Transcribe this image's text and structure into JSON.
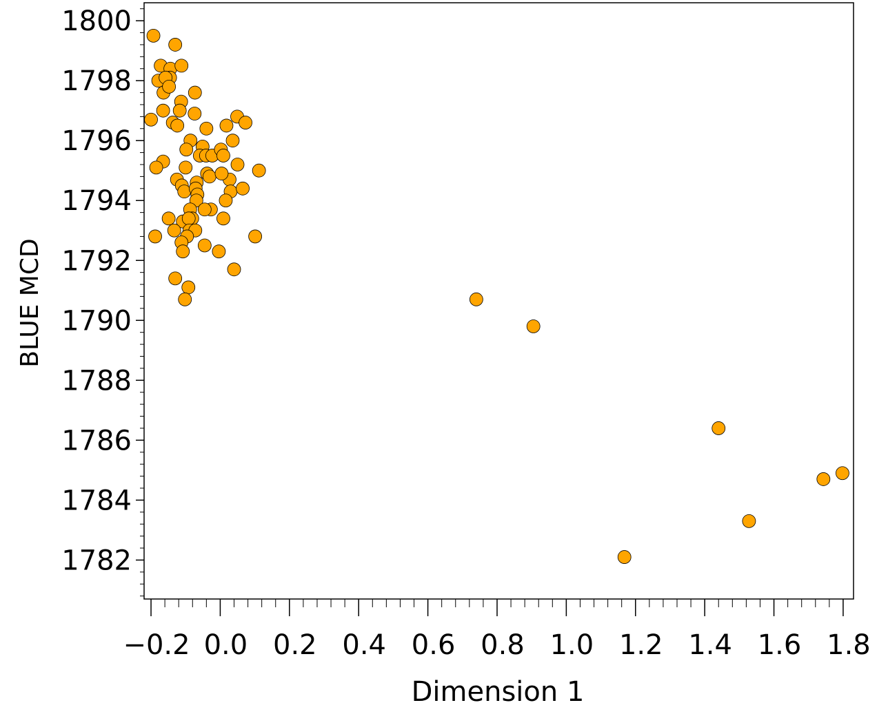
{
  "chart_data": {
    "type": "scatter",
    "title": "",
    "xlabel": "Dimension 1",
    "ylabel": "BLUE MCD",
    "xlim": [
      -0.22,
      1.83
    ],
    "ylim": [
      1780.7,
      1800.6
    ],
    "xticks": [
      "-0.2",
      "0.0",
      "0.2",
      "0.4",
      "0.6",
      "0.8",
      "1.0",
      "1.2",
      "1.4",
      "1.6",
      "1.8"
    ],
    "yticks": [
      "1782",
      "1784",
      "1786",
      "1788",
      "1790",
      "1792",
      "1794",
      "1796",
      "1798",
      "1800"
    ],
    "grid": false,
    "legend": "none",
    "marker_color": "#ffa500",
    "marker_edge": "#000000",
    "x": [
      -0.193,
      -0.13,
      -0.172,
      -0.144,
      -0.112,
      -0.145,
      -0.179,
      -0.158,
      -0.164,
      -0.148,
      -0.073,
      -0.165,
      -0.113,
      -0.117,
      -0.074,
      -0.2,
      -0.137,
      -0.124,
      -0.04,
      -0.086,
      0.049,
      0.073,
      0.018,
      0.036,
      -0.051,
      -0.098,
      -0.165,
      -0.185,
      -0.1,
      -0.059,
      -0.041,
      -0.023,
      -0.038,
      0.002,
      0.009,
      0.05,
      0.112,
      -0.125,
      -0.068,
      -0.111,
      -0.104,
      -0.031,
      0.027,
      0.004,
      0.03,
      0.065,
      -0.071,
      -0.066,
      -0.069,
      -0.087,
      -0.149,
      -0.108,
      -0.081,
      -0.091,
      -0.027,
      -0.045,
      0.016,
      0.009,
      -0.188,
      -0.133,
      -0.089,
      -0.072,
      -0.096,
      -0.112,
      0.101,
      -0.045,
      -0.004,
      0.04,
      -0.108,
      -0.13,
      -0.092,
      -0.102,
      0.74,
      0.905,
      1.44,
      1.743,
      1.798,
      1.528,
      1.168
    ],
    "y": [
      1799.5,
      1799.2,
      1798.5,
      1798.4,
      1798.5,
      1798.1,
      1798.0,
      1798.1,
      1797.6,
      1797.8,
      1797.6,
      1797.0,
      1797.3,
      1797.0,
      1796.9,
      1796.7,
      1796.6,
      1796.5,
      1796.4,
      1796.0,
      1796.8,
      1796.6,
      1796.5,
      1796.0,
      1795.8,
      1795.7,
      1795.3,
      1795.1,
      1795.1,
      1795.5,
      1795.5,
      1795.5,
      1794.9,
      1795.7,
      1795.5,
      1795.2,
      1795.0,
      1794.7,
      1794.6,
      1794.5,
      1794.3,
      1794.8,
      1794.7,
      1794.9,
      1794.3,
      1794.4,
      1794.4,
      1794.2,
      1794.0,
      1793.7,
      1793.4,
      1793.3,
      1793.4,
      1793.4,
      1793.7,
      1793.7,
      1794.0,
      1793.4,
      1792.8,
      1793.0,
      1793.0,
      1793.0,
      1792.8,
      1792.6,
      1792.8,
      1792.5,
      1792.3,
      1791.7,
      1792.3,
      1791.4,
      1791.1,
      1790.7,
      1790.7,
      1789.8,
      1786.4,
      1784.7,
      1784.9,
      1783.3,
      1782.1
    ]
  }
}
